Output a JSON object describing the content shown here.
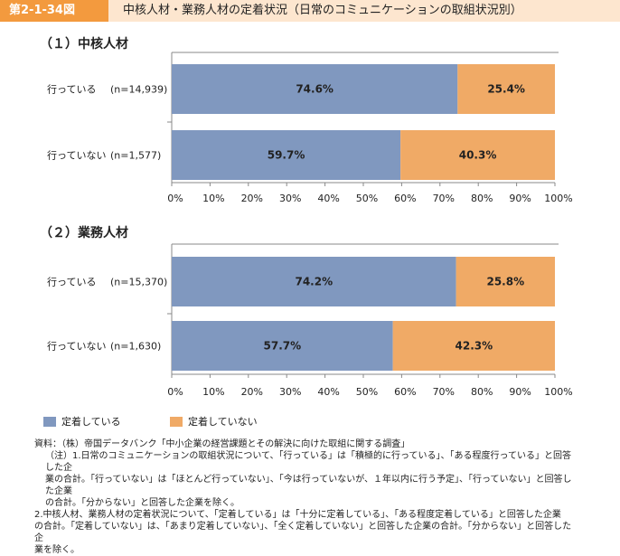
{
  "header": {
    "figure_number": "第2-1-34図",
    "title": "中核人材・業務人材の定着状況（日常のコミュニケーションの取組状況別）"
  },
  "colors": {
    "retained": "#8098bf",
    "not_retained": "#f0aa66",
    "axis": "#888888",
    "header_bg": "#fde6cf",
    "badge": "#f39a3e"
  },
  "chart_data": [
    {
      "type": "bar",
      "orientation": "horizontal-stacked-100",
      "title": "（１）中核人材",
      "categories": [
        "行っている",
        "行っていない"
      ],
      "sample_sizes": [
        "(n=14,939)",
        "(n=1,577)"
      ],
      "series": [
        {
          "name": "定着している",
          "values": [
            74.6,
            59.7
          ],
          "labels": [
            "74.6%",
            "59.7%"
          ]
        },
        {
          "name": "定着していない",
          "values": [
            25.4,
            40.3
          ],
          "labels": [
            "25.4%",
            "40.3%"
          ]
        }
      ],
      "xlim": [
        0,
        100
      ],
      "ticks": [
        "0%",
        "10%",
        "20%",
        "30%",
        "40%",
        "50%",
        "60%",
        "70%",
        "80%",
        "90%",
        "100%"
      ]
    },
    {
      "type": "bar",
      "orientation": "horizontal-stacked-100",
      "title": "（２）業務人材",
      "categories": [
        "行っている",
        "行っていない"
      ],
      "sample_sizes": [
        "(n=15,370)",
        "(n=1,630)"
      ],
      "series": [
        {
          "name": "定着している",
          "values": [
            74.2,
            57.7
          ],
          "labels": [
            "74.2%",
            "57.7%"
          ]
        },
        {
          "name": "定着していない",
          "values": [
            25.8,
            42.3
          ],
          "labels": [
            "25.8%",
            "42.3%"
          ]
        }
      ],
      "xlim": [
        0,
        100
      ],
      "ticks": [
        "0%",
        "10%",
        "20%",
        "30%",
        "40%",
        "50%",
        "60%",
        "70%",
        "80%",
        "90%",
        "100%"
      ]
    }
  ],
  "legend": [
    "定着している",
    "定着していない"
  ],
  "notes": {
    "source": "資料：（株）帝国データバンク「中小企業の経営課題とその解決に向けた取組に関する調査」",
    "note1_a": "（注）1.日常のコミュニケーションの取組状況について、「行っている」は「積極的に行っている」、「ある程度行っている」と回答した企",
    "note1_b": "業の合計。「行っていない」は「ほとんど行っていない」、「今は行っていないが、１年以内に行う予定」、「行っていない」と回答した企業",
    "note1_c": "の合計。「分からない」と回答した企業を除く。",
    "note2_a": "2.中核人材、業務人材の定着状況について、「定着している」は「十分に定着している」、「ある程度定着している」と回答した企業",
    "note2_b": "の合計。「定着していない」は、「あまり定着していない」、「全く定着していない」と回答した企業の合計。「分からない」と回答した企",
    "note2_c": "業を除く。"
  }
}
